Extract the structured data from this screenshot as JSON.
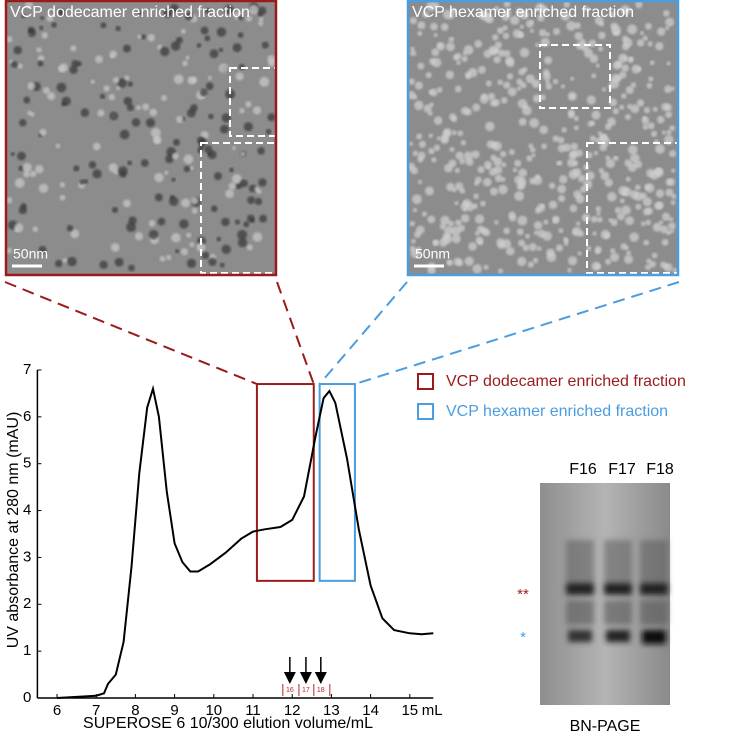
{
  "chart_data": {
    "type": "line",
    "xlabel": "SUPEROSE 6 10/300 elution volume/mL",
    "x_unit": "mL",
    "ylabel": "UV absorbance at 280 nm (mAU)",
    "color": "#000000",
    "x": [
      6.0,
      7.0,
      7.2,
      7.3,
      7.5,
      7.7,
      7.9,
      8.1,
      8.3,
      8.45,
      8.6,
      8.8,
      9.0,
      9.2,
      9.4,
      9.6,
      9.9,
      10.3,
      10.7,
      11.0,
      11.3,
      11.7,
      12.0,
      12.3,
      12.6,
      12.8,
      12.95,
      13.1,
      13.4,
      13.7,
      14.0,
      14.3,
      14.6,
      15.0,
      15.3,
      15.6
    ],
    "values": [
      0.0,
      0.05,
      0.1,
      0.3,
      0.5,
      1.2,
      2.8,
      4.8,
      6.2,
      6.6,
      6.0,
      4.4,
      3.3,
      2.9,
      2.7,
      2.7,
      2.85,
      3.1,
      3.4,
      3.55,
      3.6,
      3.65,
      3.8,
      4.3,
      5.6,
      6.4,
      6.55,
      6.3,
      5.1,
      3.6,
      2.4,
      1.7,
      1.45,
      1.38,
      1.36,
      1.38
    ],
    "xlim": [
      5.5,
      15.6
    ],
    "ylim": [
      0,
      7
    ],
    "xticks": [
      6,
      7,
      8,
      9,
      10,
      11,
      12,
      13,
      14,
      15
    ],
    "yticks": [
      0,
      1,
      2,
      3,
      4,
      5,
      6,
      7
    ],
    "highlights": [
      {
        "name": "VCP dodecamer enriched fraction",
        "color": "#9b1b1b",
        "x": [
          11.1,
          12.55
        ],
        "y": [
          2.5,
          6.7
        ]
      },
      {
        "name": "VCP hexamer enriched fraction",
        "color": "#4a9de0",
        "x": [
          12.7,
          13.6
        ],
        "y": [
          2.5,
          6.7
        ]
      }
    ],
    "fractions": [
      {
        "label": "16",
        "x": 11.94
      },
      {
        "label": "17",
        "x": 12.35
      },
      {
        "label": "18",
        "x": 12.73
      }
    ]
  },
  "micrographs": [
    {
      "title": "VCP dodecamer enriched fraction",
      "scale_bar": "50nm",
      "color": "#9b1b1b"
    },
    {
      "title": "VCP hexamer enriched fraction",
      "scale_bar": "50nm",
      "color": "#4a9de0"
    }
  ],
  "gel": {
    "lanes": [
      "F16",
      "F17",
      "F18"
    ],
    "caption": "BN-PAGE",
    "markers": [
      {
        "label": "**",
        "color": "#9b1b1b"
      },
      {
        "label": "*",
        "color": "#4a9de0"
      }
    ]
  }
}
